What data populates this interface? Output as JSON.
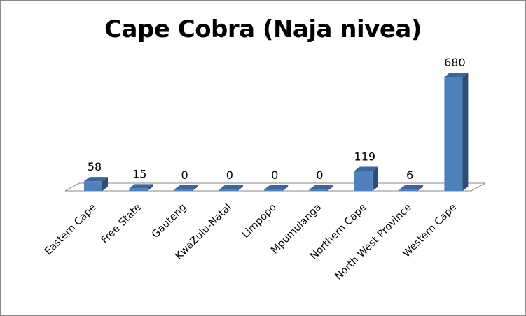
{
  "chart_data": {
    "type": "bar",
    "title": "Cape Cobra (Naja nivea)",
    "categories": [
      "Eastern Cape",
      "Free State",
      "Gauteng",
      "KwaZulu-Natal",
      "Limpopo",
      "Mpumulanga",
      "Northern Cape",
      "North West Province",
      "Western Cape"
    ],
    "values": [
      58,
      15,
      0,
      0,
      0,
      0,
      119,
      6,
      680
    ],
    "data_labels": [
      "58",
      "15",
      "0",
      "0",
      "0",
      "0",
      "119",
      "6",
      "680"
    ],
    "xlabel": "",
    "ylabel": "",
    "ylim": [
      0,
      680
    ],
    "grid": false,
    "legend": "none",
    "three_d": true,
    "colors": {
      "bar_front": "#4F81BD",
      "bar_side": "#2C4D75",
      "bar_top": "#3B66A0",
      "floor": "#ffffff",
      "floor_edge": "#8a8a8a"
    }
  }
}
